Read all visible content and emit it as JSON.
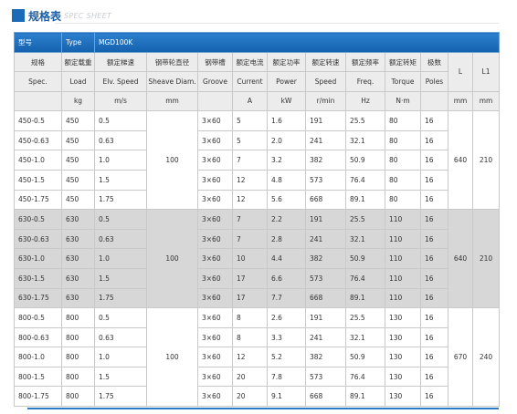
{
  "header": {
    "title": "规格表",
    "subtitle": "SPEC SHEET"
  },
  "table": {
    "model_row": [
      "型号",
      "Type",
      "MGD100K"
    ],
    "header_cn": [
      "规格",
      "额定载重",
      "额定梯速",
      "钢带轮直径",
      "钢带槽",
      "额定电流",
      "额定功率",
      "额定转速",
      "额定频率",
      "额定转矩",
      "极数",
      "L",
      "L1"
    ],
    "header_en": [
      "Spec.",
      "Load",
      "Elv. Speed",
      "Sheave Diam.",
      "Groove",
      "Current",
      "Power",
      "Speed",
      "Freq.",
      "Torque",
      "Poles"
    ],
    "units": [
      "kg",
      "m/s",
      "mm",
      "A",
      "kW",
      "r/min",
      "Hz",
      "N·m",
      "mm",
      "mm"
    ],
    "groups": [
      {
        "sheave": "100",
        "L": "640",
        "L1": "210",
        "rows": [
          [
            "450-0.5",
            "450",
            "0.5",
            "3×60",
            "5",
            "1.6",
            "191",
            "25.5",
            "80",
            "16"
          ],
          [
            "450-0.63",
            "450",
            "0.63",
            "3×60",
            "5",
            "2.0",
            "241",
            "32.1",
            "80",
            "16"
          ],
          [
            "450-1.0",
            "450",
            "1.0",
            "3×60",
            "7",
            "3.2",
            "382",
            "50.9",
            "80",
            "16"
          ],
          [
            "450-1.5",
            "450",
            "1.5",
            "3×60",
            "12",
            "4.8",
            "573",
            "76.4",
            "80",
            "16"
          ],
          [
            "450-1.75",
            "450",
            "1.75",
            "3×60",
            "12",
            "5.6",
            "668",
            "89.1",
            "80",
            "16"
          ]
        ]
      },
      {
        "sheave": "100",
        "L": "640",
        "L1": "210",
        "rows": [
          [
            "630-0.5",
            "630",
            "0.5",
            "3×60",
            "7",
            "2.2",
            "191",
            "25.5",
            "110",
            "16"
          ],
          [
            "630-0.63",
            "630",
            "0.63",
            "3×60",
            "7",
            "2.8",
            "241",
            "32.1",
            "110",
            "16"
          ],
          [
            "630-1.0",
            "630",
            "1.0",
            "3×60",
            "10",
            "4.4",
            "382",
            "50.9",
            "110",
            "16"
          ],
          [
            "630-1.5",
            "630",
            "1.5",
            "3×60",
            "17",
            "6.6",
            "573",
            "76.4",
            "110",
            "16"
          ],
          [
            "630-1.75",
            "630",
            "1.75",
            "3×60",
            "17",
            "7.7",
            "668",
            "89.1",
            "110",
            "16"
          ]
        ]
      },
      {
        "sheave": "100",
        "L": "670",
        "L1": "240",
        "rows": [
          [
            "800-0.5",
            "800",
            "0.5",
            "3×60",
            "8",
            "2.6",
            "191",
            "25.5",
            "130",
            "16"
          ],
          [
            "800-0.63",
            "800",
            "0.63",
            "3×60",
            "8",
            "3.3",
            "241",
            "32.1",
            "130",
            "16"
          ],
          [
            "800-1.0",
            "800",
            "1.0",
            "3×60",
            "12",
            "5.2",
            "382",
            "50.9",
            "130",
            "16"
          ],
          [
            "800-1.5",
            "800",
            "1.5",
            "3×60",
            "20",
            "7.8",
            "573",
            "76.4",
            "130",
            "16"
          ],
          [
            "800-1.75",
            "800",
            "1.75",
            "3×60",
            "20",
            "9.1",
            "668",
            "89.1",
            "130",
            "16"
          ]
        ]
      }
    ]
  }
}
